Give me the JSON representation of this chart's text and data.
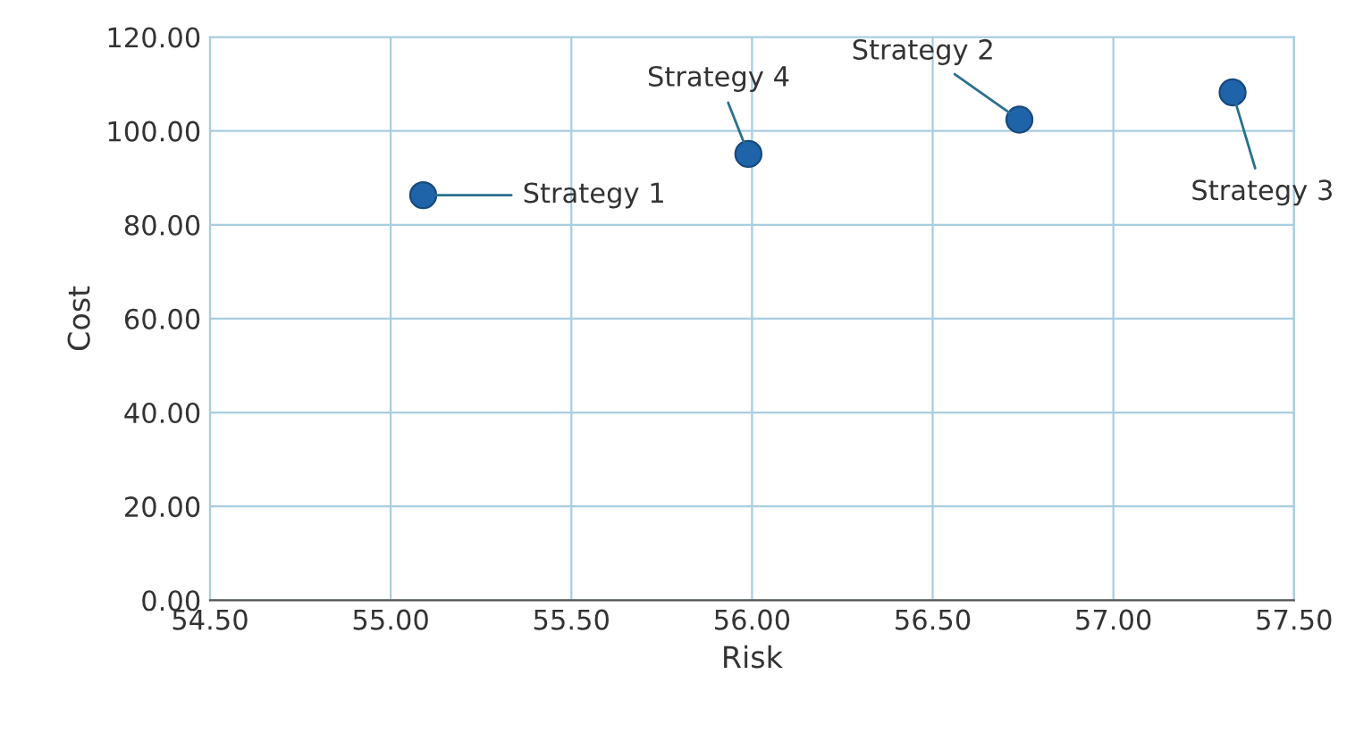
{
  "chart_data": {
    "type": "scatter",
    "xlabel": "Risk",
    "ylabel": "Cost",
    "x": [
      55.09,
      56.74,
      57.33,
      55.99
    ],
    "series": [
      {
        "color": "#1f64a8",
        "values": [
          86.3,
          102.4,
          108.2,
          95.1
        ]
      }
    ],
    "xlim": [
      54.5,
      57.5
    ],
    "xticks": [
      {
        "value": 54.5,
        "label": "54.50"
      },
      {
        "value": 55,
        "label": "55.00"
      },
      {
        "value": 55.5,
        "label": "55.50"
      },
      {
        "value": 56,
        "label": "56.00"
      },
      {
        "value": 56.5,
        "label": "56.50"
      },
      {
        "value": 57,
        "label": "57.00"
      },
      {
        "value": 57.5,
        "label": "57.50"
      }
    ],
    "ylim": [
      0,
      120
    ],
    "yticks": [
      {
        "value": 0,
        "label": "0.00"
      },
      {
        "value": 20,
        "label": "20.00"
      },
      {
        "value": 40,
        "label": "40.00"
      },
      {
        "value": 60,
        "label": "60.00"
      },
      {
        "value": 80,
        "label": "80.00"
      },
      {
        "value": 100,
        "label": "100.00"
      },
      {
        "value": 120,
        "label": "120.00"
      }
    ],
    "grid": true,
    "marker": "circle",
    "legend": false,
    "annotations": [
      {
        "text": "Strategy 1",
        "x": 55.09,
        "y": 86.3
      },
      {
        "text": "Strategy 2",
        "x": 56.74,
        "y": 102.4
      },
      {
        "text": "Strategy 3",
        "x": 57.33,
        "y": 108.2
      },
      {
        "text": "Strategy 4",
        "x": 55.99,
        "y": 95.1
      }
    ]
  }
}
